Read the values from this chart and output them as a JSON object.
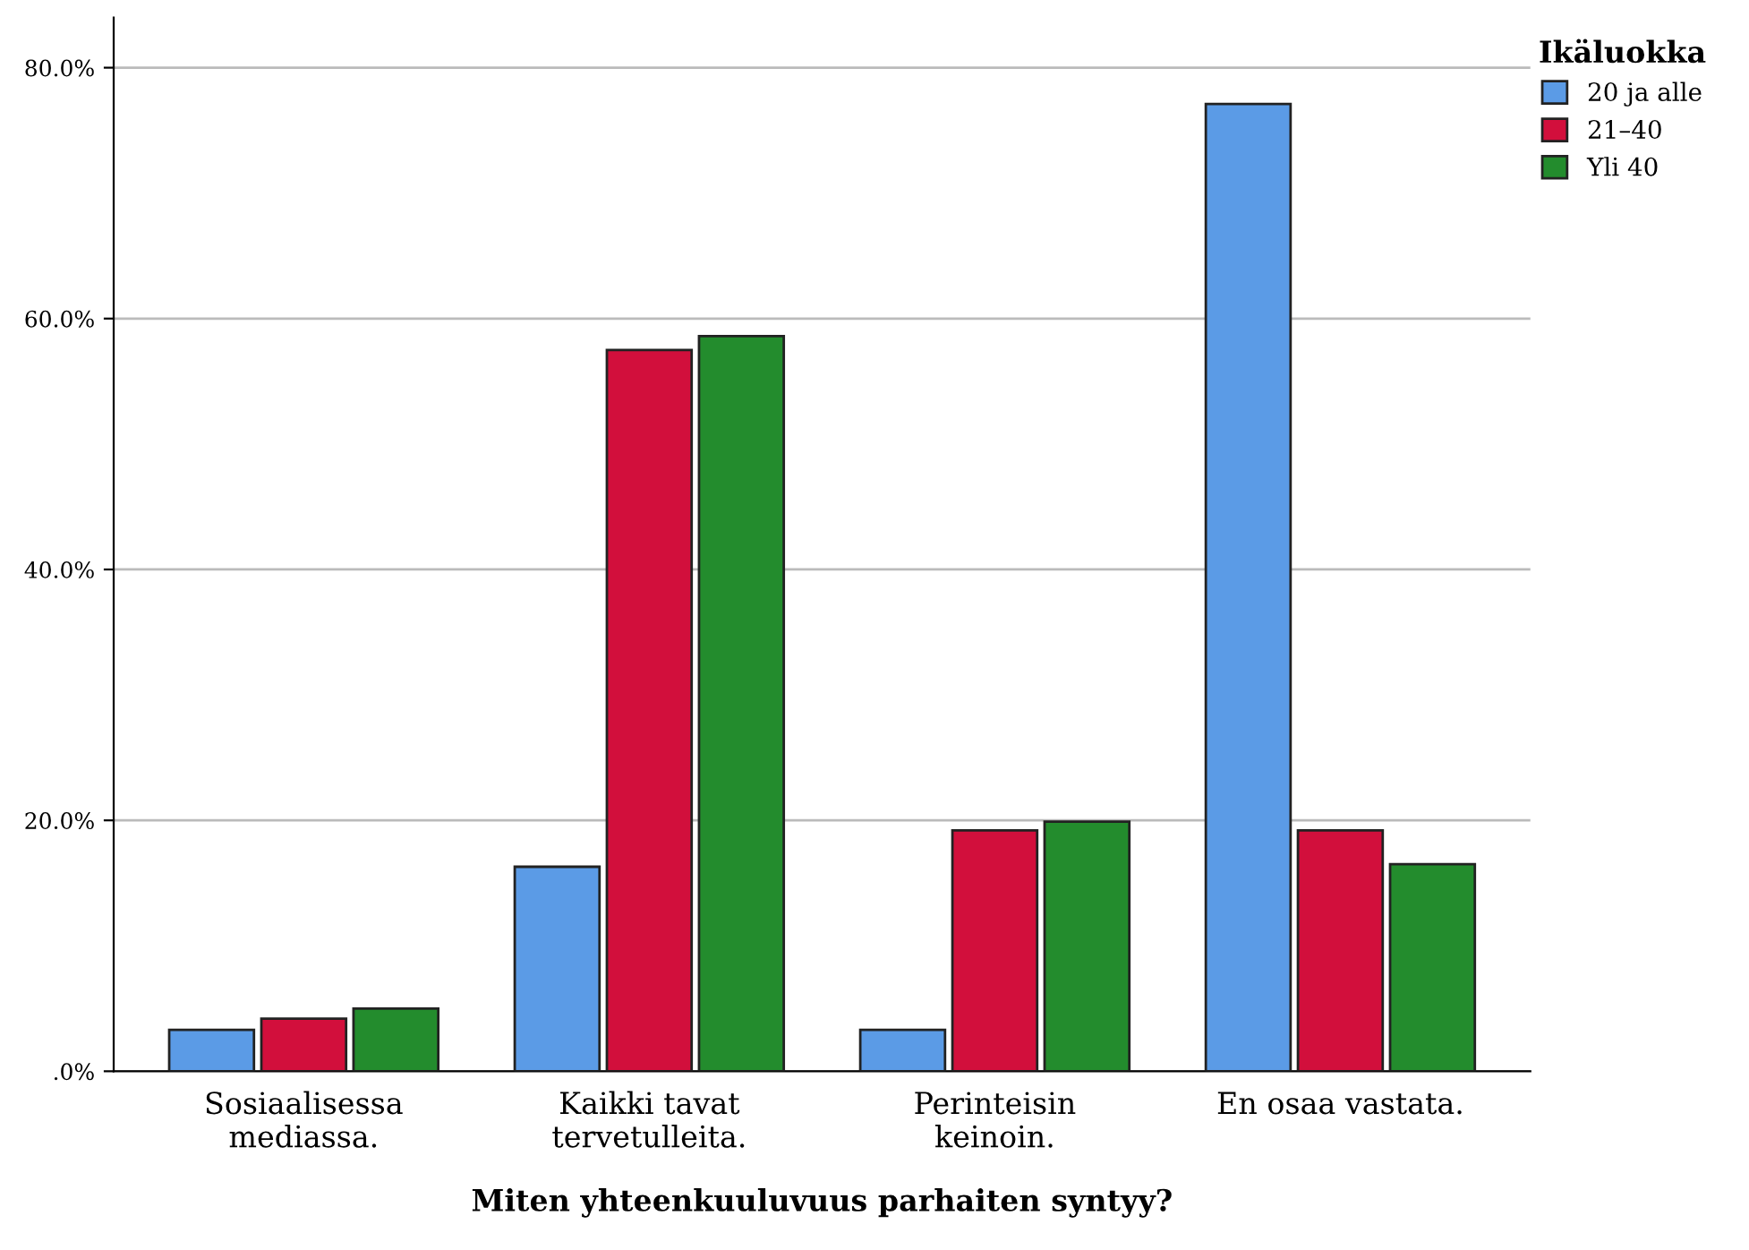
{
  "chart_data": {
    "type": "bar",
    "xlabel": "Miten yhteenkuuluvuus parhaiten syntyy?",
    "legend_title": "Ikäluokka",
    "categories": [
      "Sosiaalisessa\nmediassa.",
      "Kaikki tavat\ntervetulleita.",
      "Perinteisin\nkeinoin.",
      "En osaa vastata."
    ],
    "series": [
      {
        "name": "20 ja alle",
        "color": "#5b9be6",
        "values": [
          3.3,
          16.3,
          3.3,
          77.1
        ]
      },
      {
        "name": "21–40",
        "color": "#d20f3c",
        "values": [
          4.2,
          57.5,
          19.2,
          19.2
        ]
      },
      {
        "name": "Yli 40",
        "color": "#238c2d",
        "values": [
          5.0,
          58.6,
          19.9,
          16.5
        ]
      }
    ],
    "ylim": [
      0,
      84
    ],
    "yticks": [
      {
        "value": 0,
        "label": ".0%"
      },
      {
        "value": 20,
        "label": "20.0%"
      },
      {
        "value": 40,
        "label": "40.0%"
      },
      {
        "value": 60,
        "label": "60.0%"
      },
      {
        "value": 80,
        "label": "80.0%"
      }
    ],
    "grid": "y",
    "legend": "top right"
  }
}
